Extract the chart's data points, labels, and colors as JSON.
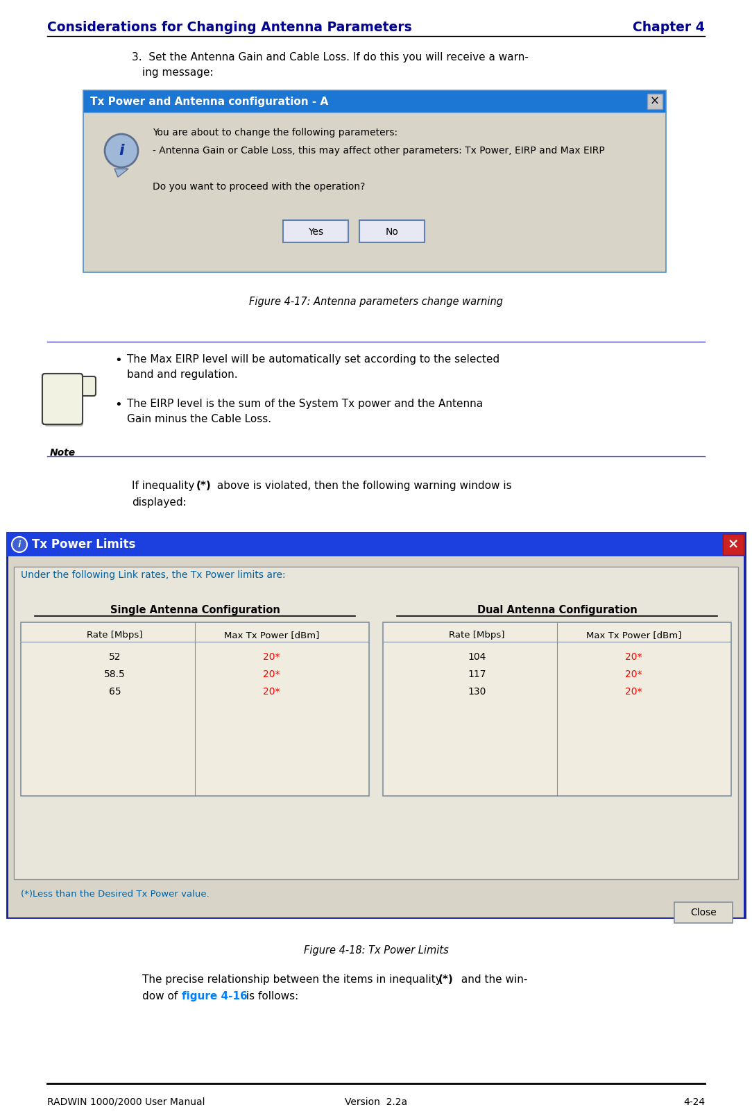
{
  "page_title_left": "Considerations for Changing Antenna Parameters",
  "page_title_right": "Chapter 4",
  "header_color": "#00008B",
  "step3_line1": "3.  Set the Antenna Gain and Cable Loss. If do this you will receive a warn-",
  "step3_line2": "ing message:",
  "fig17_caption": "Figure 4-17: Antenna parameters change warning",
  "fig18_caption": "Figure 4-18: Tx Power Limits",
  "dialog1_title": "Tx Power and Antenna configuration - A",
  "dialog1_title_bg": "#1C76D4",
  "dialog1_body_bg": "#D8D5C8",
  "dialog1_line1": "You are about to change the following parameters:",
  "dialog1_line2": "- Antenna Gain or Cable Loss, this may affect other parameters: Tx Power, EIRP and Max EIRP",
  "dialog1_line3": "Do you want to proceed with the operation?",
  "note_bullet1a": "The Max EIRP level will be automatically set according to the selected",
  "note_bullet1b": "band and regulation.",
  "note_bullet2a": "The EIRP level is the sum of the System Tx power and the Antenna",
  "note_bullet2b": "Gain minus the Cable Loss.",
  "dialog2_title": "Tx Power Limits",
  "dialog2_title_bg": "#1C40E0",
  "dialog2_body_bg": "#D8D5C8",
  "dialog2_inner_bg": "#F0EEE8",
  "dialog2_subtitle": "Under the following Link rates, the Tx Power limits are:",
  "dialog2_subtitle_color": "#0060A0",
  "dialog2_header1": "Single Antenna Configuration",
  "dialog2_header2": "Dual Antenna Configuration",
  "dialog2_single_rates": [
    "52",
    "58.5",
    "65"
  ],
  "dialog2_single_power": [
    "20*",
    "20*",
    "20*"
  ],
  "dialog2_dual_rates": [
    "104",
    "117",
    "130"
  ],
  "dialog2_dual_power": [
    "20*",
    "20*",
    "20*"
  ],
  "dialog2_footnote": "(*)Less than the Desired Tx Power value.",
  "power_color": "#FF0000",
  "footnote_color": "#0060A0",
  "precise_link": "figure 4-16",
  "precise_link_color": "#0080FF",
  "footer_left": "RADWIN 1000/2000 User Manual",
  "footer_center": "Version  2.2a",
  "footer_right": "4-24",
  "bg_color": "#FFFFFF",
  "note_line_color": "#4040C0",
  "header_line_color": "#000000"
}
